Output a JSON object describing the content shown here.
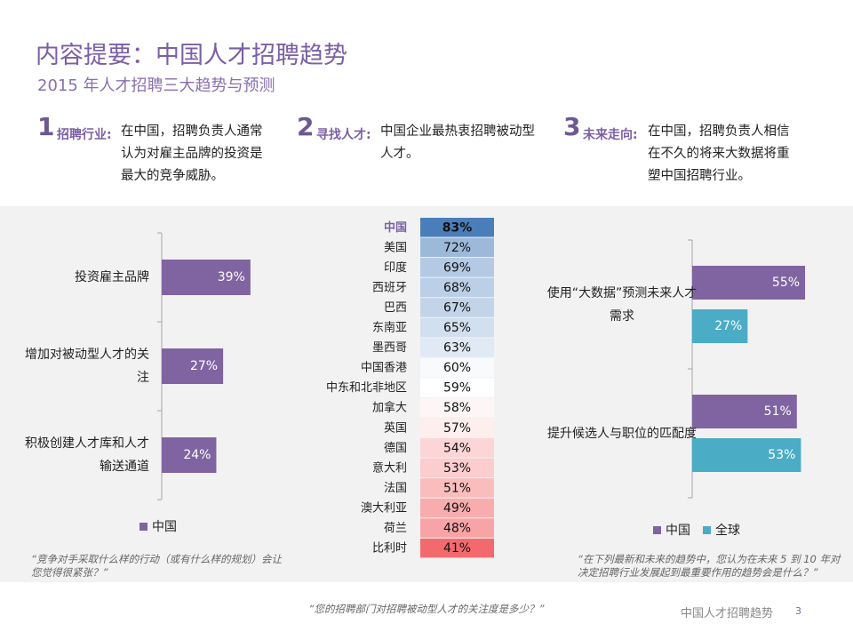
{
  "header": {
    "title": "内容提要：中国人才招聘趋势",
    "subtitle": "2015 年人才招聘三大趋势与预测"
  },
  "points": [
    {
      "number": "1",
      "label": "招聘行业:",
      "text": "在中国，招聘负责人通常认为对雇主品牌的投资是最大的竞争威胁。"
    },
    {
      "number": "2",
      "label": "寻找人才:",
      "text": "中国企业最热衷招聘被动型人才。"
    },
    {
      "number": "3",
      "label": "未来走向:",
      "text": "在中国，招聘负责人相信在不久的将来大数据将重塑中国招聘行业。"
    }
  ],
  "chart_data": [
    {
      "type": "hbar",
      "categories": [
        "投资雇主品牌",
        "增加对被动型人才的关注",
        "积极创建人才库和人才输送通道"
      ],
      "series": [
        {
          "name": "中国",
          "color": "#8064a2",
          "values": [
            39,
            27,
            24
          ],
          "value_labels": [
            "39%",
            "27%",
            "24%"
          ]
        }
      ],
      "xlim": [
        0,
        100
      ],
      "note": "“竞争对手采取什么样的行动（或有什么样的规划）会让您觉得很紧张？”"
    },
    {
      "type": "heatmap",
      "categories": [
        "中国",
        "美国",
        "印度",
        "西班牙",
        "巴西",
        "东南亚",
        "墨西哥",
        "中国香港",
        "中东和北非地区",
        "加拿大",
        "英国",
        "德国",
        "意大利",
        "法国",
        "澳大利亚",
        "荷兰",
        "比利时"
      ],
      "values": [
        83,
        72,
        69,
        68,
        67,
        65,
        63,
        60,
        59,
        58,
        57,
        54,
        53,
        51,
        49,
        48,
        41
      ],
      "value_labels": [
        "83%",
        "72%",
        "69%",
        "68%",
        "67%",
        "65%",
        "63%",
        "60%",
        "59%",
        "58%",
        "57%",
        "54%",
        "53%",
        "51%",
        "49%",
        "48%",
        "41%"
      ],
      "highlight_index": 0,
      "colors": [
        "#f36a6e",
        "#ffffff",
        "#4a7ebb"
      ],
      "note": "“您的招聘部门对招聘被动型人才的关注度是多少？”"
    },
    {
      "type": "hbar",
      "categories": [
        "使用“大数据”预测未来人才需求",
        "提升候选人与职位的匹配度"
      ],
      "series": [
        {
          "name": "中国",
          "color": "#8064a2",
          "values": [
            55,
            51
          ],
          "value_labels": [
            "55%",
            "51%"
          ]
        },
        {
          "name": "全球",
          "color": "#4bacc6",
          "values": [
            27,
            53
          ],
          "value_labels": [
            "27%",
            "53%"
          ]
        }
      ],
      "xlim": [
        0,
        100
      ],
      "note": "“在下列最新和未来的趋势中，您认为在未来 5 到 10 年对决定招聘行业发展起到最重要作用的趋势会是什么？”"
    }
  ],
  "footer": {
    "page_title": "中国人才招聘趋势",
    "page_number": "3"
  }
}
